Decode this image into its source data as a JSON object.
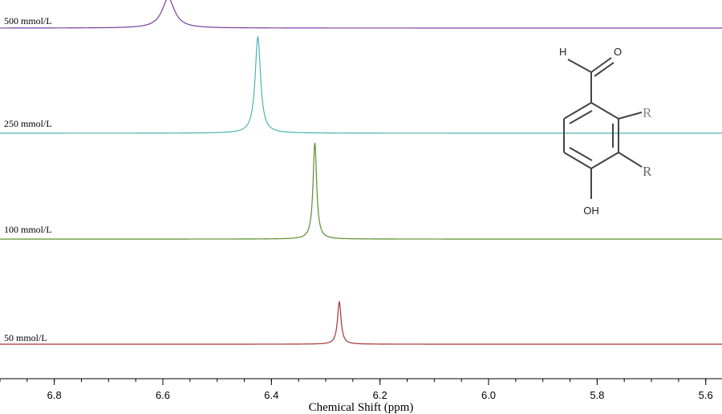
{
  "chart_data": {
    "type": "line",
    "title": "",
    "xlabel": "Chemical Shift (ppm)",
    "ylabel": "",
    "xlim": [
      6.9,
      5.57
    ],
    "x_reversed": true,
    "x_ticks": [
      6.8,
      6.6,
      6.4,
      6.2,
      6.0,
      5.8,
      5.6
    ],
    "x_tick_labels": [
      "6.8",
      "6.6",
      "6.4",
      "6.2",
      "6.0",
      "5.8",
      "5.6"
    ],
    "grid": false,
    "series": [
      {
        "name": "500 mmol/L",
        "peak_ppm": 6.59,
        "peak_width_ppm": 0.014,
        "relative_height": 0.31,
        "color": "#7b3f9e"
      },
      {
        "name": "250 mmol/L",
        "peak_ppm": 6.425,
        "peak_width_ppm": 0.006,
        "relative_height": 1.0,
        "color": "#4fb3b3"
      },
      {
        "name": "100 mmol/L",
        "peak_ppm": 6.32,
        "peak_width_ppm": 0.004,
        "relative_height": 1.0,
        "color": "#5a8f2e"
      },
      {
        "name": "50 mmol/L",
        "peak_ppm": 6.275,
        "peak_width_ppm": 0.004,
        "relative_height": 0.44,
        "color": "#a83232"
      }
    ],
    "structure_labels": {
      "h": "H",
      "o": "O",
      "r1": "R",
      "r2": "R",
      "oh": "OH"
    }
  }
}
